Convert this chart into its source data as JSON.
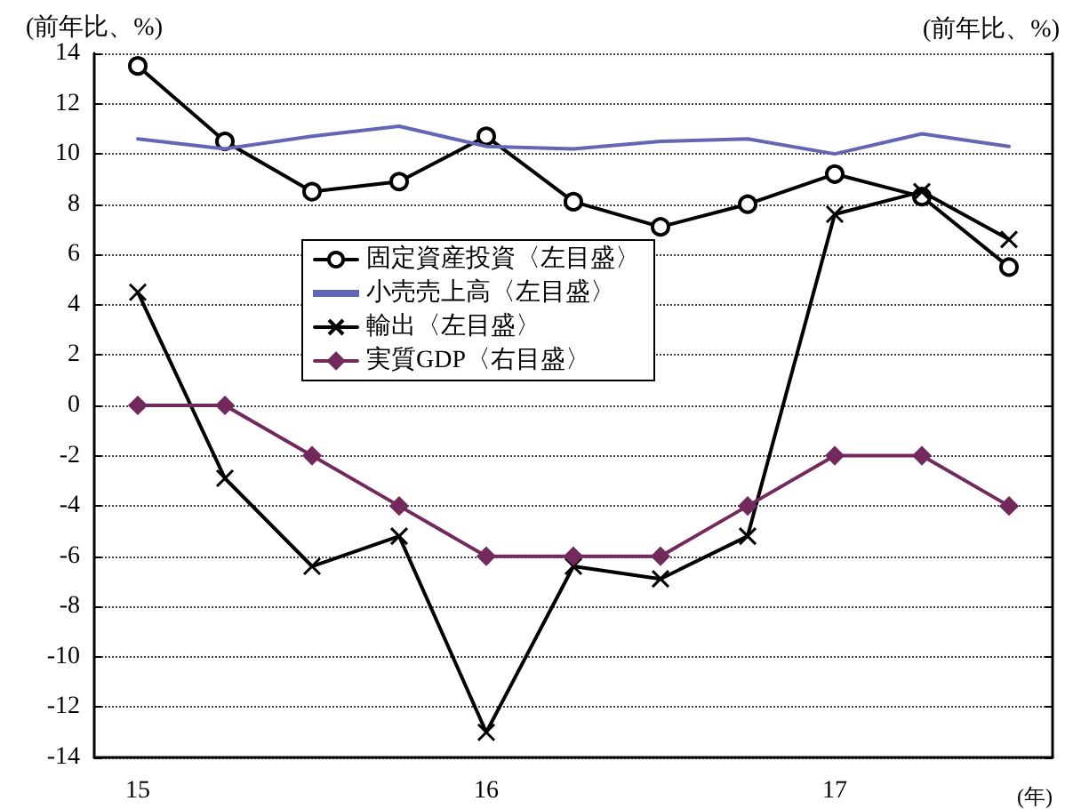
{
  "chart_data": {
    "type": "line",
    "categories": [
      "15",
      null,
      null,
      null,
      "16",
      null,
      null,
      null,
      "17",
      null,
      null
    ],
    "xlabel": "(年)",
    "ylabel": "(前年比、%)",
    "y2label": "(前年比、%)",
    "series": [
      {
        "name": "固定資産投資〈左目盛〉",
        "color": "#000000",
        "marker": "circle",
        "values": [
          13.5,
          10.5,
          8.5,
          8.9,
          10.7,
          8.1,
          7.1,
          8.0,
          9.2,
          8.3,
          5.5
        ]
      },
      {
        "name": "小売売上高〈左目盛〉",
        "color": "#6266b4",
        "marker": "none",
        "values": [
          10.6,
          10.2,
          10.7,
          11.1,
          10.3,
          10.2,
          10.5,
          10.6,
          10.0,
          10.8,
          10.3
        ]
      },
      {
        "name": "輸出〈左目盛〉",
        "color": "#000000",
        "marker": "cross",
        "values": [
          4.5,
          -2.9,
          -6.4,
          -5.2,
          -13.0,
          -6.4,
          -6.9,
          -5.2,
          7.6,
          8.5,
          6.6
        ]
      },
      {
        "name": "実質GDP〈右目盛〉",
        "color": "#722a5c",
        "marker": "diamond",
        "values": [
          0,
          0,
          -2,
          -4,
          -6,
          -6,
          -6,
          -4,
          -2,
          -2,
          -4
        ]
      }
    ],
    "ylim": [
      -14,
      14
    ],
    "yticks": [
      -14,
      -12,
      -10,
      -8,
      -6,
      -4,
      -2,
      0,
      2,
      4,
      6,
      8,
      10,
      12,
      14
    ],
    "grid": "y",
    "legend": "center left",
    "line_style": "solid"
  }
}
